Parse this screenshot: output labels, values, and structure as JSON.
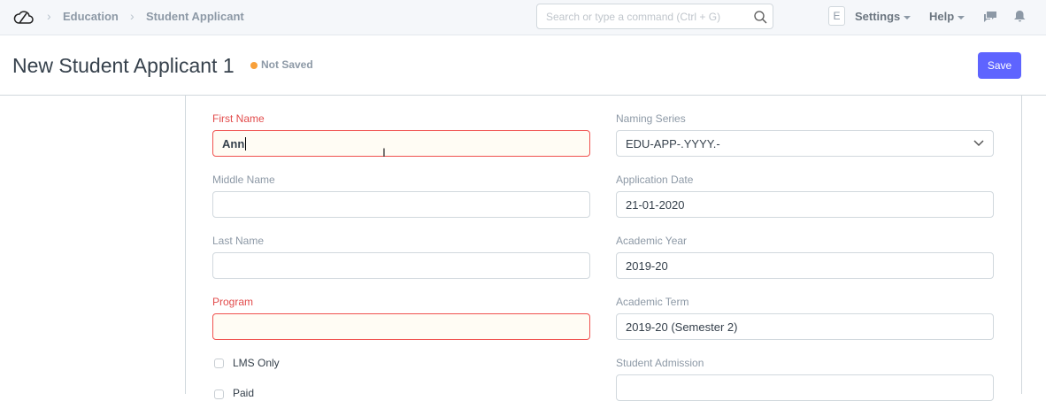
{
  "navbar": {
    "breadcrumbs": [
      "Education",
      "Student Applicant"
    ],
    "search_placeholder": "Search or type a command (Ctrl + G)",
    "avatar_letter": "E",
    "settings": "Settings",
    "help": "Help"
  },
  "header": {
    "title": "New Student Applicant 1",
    "status": "Not Saved",
    "status_color": "#f8a03a",
    "save": "Save"
  },
  "form": {
    "first_name": {
      "label": "First Name",
      "value": "Ann"
    },
    "middle_name": {
      "label": "Middle Name",
      "value": ""
    },
    "last_name": {
      "label": "Last Name",
      "value": ""
    },
    "program": {
      "label": "Program",
      "value": ""
    },
    "lms_only": {
      "label": "LMS Only",
      "checked": false
    },
    "paid": {
      "label": "Paid",
      "checked": false
    },
    "naming_series": {
      "label": "Naming Series",
      "value": "EDU-APP-.YYYY.-"
    },
    "application_date": {
      "label": "Application Date",
      "value": "21-01-2020"
    },
    "academic_year": {
      "label": "Academic Year",
      "value": "2019-20"
    },
    "academic_term": {
      "label": "Academic Term",
      "value": "2019-20 (Semester 2)"
    },
    "student_admission": {
      "label": "Student Admission",
      "value": ""
    }
  }
}
